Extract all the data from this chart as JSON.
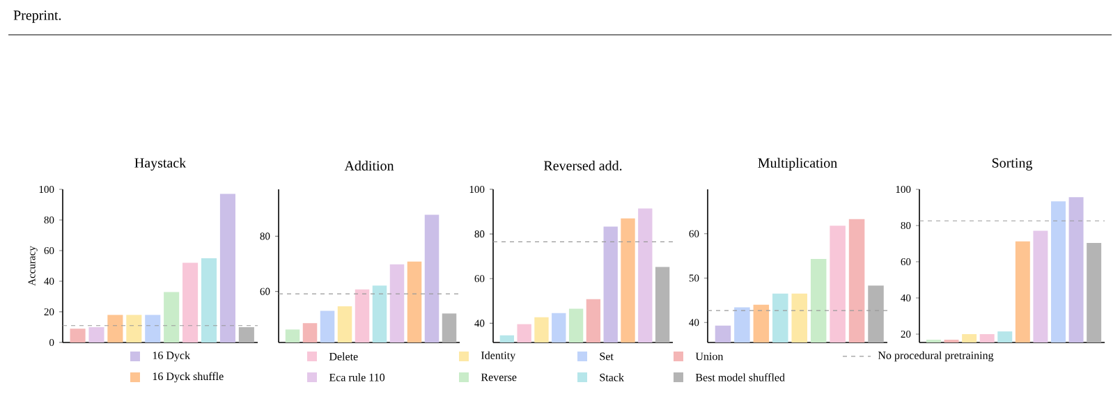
{
  "chart_data": [
    {
      "type": "bar",
      "title": "Haystack",
      "ylabel": "Accuracy",
      "annotations": [
        "Preprint."
      ],
      "categories": [
        null,
        null,
        null,
        null,
        null,
        null,
        null,
        null,
        null,
        null
      ],
      "ylim": [
        0,
        100
      ],
      "yticks": [
        0,
        20,
        40,
        60,
        80,
        100
      ],
      "ref_lines": [
        {
          "axis": "y",
          "value": 11,
          "color": "#999999",
          "line_style": "dashed"
        }
      ],
      "series": [
        {
          "color": "#cbbfe8",
          "values": [
            null,
            null,
            null,
            null,
            null,
            null,
            null,
            null,
            97,
            null
          ]
        },
        {
          "color": "#fec491",
          "values": [
            null,
            null,
            18,
            null,
            null,
            null,
            null,
            null,
            null,
            null
          ]
        },
        {
          "color": "#f8c6d8",
          "values": [
            null,
            null,
            null,
            null,
            null,
            null,
            52,
            null,
            null,
            null
          ]
        },
        {
          "color": "#e4c8ea",
          "values": [
            null,
            10,
            null,
            null,
            null,
            null,
            null,
            null,
            null,
            null
          ]
        },
        {
          "color": "#fde8a5",
          "values": [
            null,
            null,
            null,
            18,
            null,
            null,
            null,
            null,
            null,
            null
          ]
        },
        {
          "color": "#c9ecc9",
          "values": [
            null,
            null,
            null,
            null,
            null,
            33,
            null,
            null,
            null,
            null
          ]
        },
        {
          "color": "#bfd3fa",
          "values": [
            null,
            null,
            null,
            null,
            18,
            null,
            null,
            null,
            null,
            null
          ]
        },
        {
          "color": "#b6e6ea",
          "values": [
            null,
            null,
            null,
            null,
            null,
            null,
            null,
            55,
            null,
            null
          ]
        },
        {
          "color": "#f4b6b6",
          "values": [
            9,
            null,
            null,
            null,
            null,
            null,
            null,
            null,
            null,
            null
          ]
        },
        {
          "color": "#b4b4b4",
          "values": [
            null,
            null,
            null,
            null,
            null,
            null,
            null,
            null,
            null,
            10
          ]
        }
      ]
    },
    {
      "type": "bar",
      "title": "Addition",
      "categories": [
        null,
        null,
        null,
        null,
        null,
        null,
        null,
        null,
        null,
        null
      ],
      "ylim": [
        41.5,
        97
      ],
      "yticks": [
        60,
        80
      ],
      "ref_lines": [
        {
          "axis": "y",
          "value": 59.1,
          "color": "#999999",
          "line_style": "dashed"
        }
      ],
      "series": [
        {
          "color": "#cbbfe8",
          "values": [
            null,
            null,
            null,
            null,
            null,
            null,
            null,
            null,
            87.8,
            null
          ]
        },
        {
          "color": "#fec491",
          "values": [
            null,
            null,
            null,
            null,
            null,
            null,
            null,
            70.8,
            null,
            null
          ]
        },
        {
          "color": "#f8c6d8",
          "values": [
            null,
            null,
            null,
            null,
            60.7,
            null,
            null,
            null,
            null,
            null
          ]
        },
        {
          "color": "#e4c8ea",
          "values": [
            null,
            null,
            null,
            null,
            null,
            null,
            69.8,
            null,
            null,
            null
          ]
        },
        {
          "color": "#fde8a5",
          "values": [
            null,
            null,
            null,
            54.6,
            null,
            null,
            null,
            null,
            null,
            null
          ]
        },
        {
          "color": "#c9ecc9",
          "values": [
            46.2,
            null,
            null,
            null,
            null,
            null,
            null,
            null,
            null,
            null
          ]
        },
        {
          "color": "#bfd3fa",
          "values": [
            null,
            null,
            53,
            null,
            null,
            null,
            null,
            null,
            null,
            null
          ]
        },
        {
          "color": "#b6e6ea",
          "values": [
            null,
            null,
            null,
            null,
            null,
            62.1,
            null,
            null,
            null,
            null
          ]
        },
        {
          "color": "#f4b6b6",
          "values": [
            null,
            48.5,
            null,
            null,
            null,
            null,
            null,
            null,
            null,
            null
          ]
        },
        {
          "color": "#b4b4b4",
          "values": [
            null,
            null,
            null,
            null,
            null,
            null,
            null,
            null,
            null,
            52
          ]
        }
      ]
    },
    {
      "type": "bar",
      "title": "Reversed add.",
      "legend": "bottom",
      "categories": [
        null,
        null,
        null,
        null,
        null,
        null,
        null,
        null,
        null,
        null
      ],
      "ylim": [
        31.4,
        100
      ],
      "yticks": [
        40,
        60,
        80,
        100
      ],
      "ref_lines": [
        {
          "axis": "y",
          "value": 76.5,
          "label": "No procedural pretraining",
          "color": "#999999",
          "line_style": "dashed"
        }
      ],
      "series": [
        {
          "name": "16 Dyck",
          "color": "#cbbfe8",
          "values": [
            null,
            null,
            null,
            null,
            null,
            null,
            83.3,
            null,
            null,
            null
          ]
        },
        {
          "name": "16 Dyck shuffle",
          "color": "#fec491",
          "values": [
            null,
            null,
            null,
            null,
            null,
            null,
            null,
            87,
            null,
            null
          ]
        },
        {
          "name": "Delete",
          "color": "#f8c6d8",
          "values": [
            null,
            39.6,
            null,
            null,
            null,
            null,
            null,
            null,
            null,
            null
          ]
        },
        {
          "name": "Eca rule 110",
          "color": "#e4c8ea",
          "values": [
            null,
            null,
            null,
            null,
            null,
            null,
            null,
            null,
            91.4,
            null
          ]
        },
        {
          "name": "Identity",
          "color": "#fde8a5",
          "values": [
            null,
            null,
            42.7,
            null,
            null,
            null,
            null,
            null,
            null,
            null
          ]
        },
        {
          "name": "Reverse",
          "color": "#c9ecc9",
          "values": [
            null,
            null,
            null,
            null,
            46.5,
            null,
            null,
            null,
            null,
            null
          ]
        },
        {
          "name": "Set",
          "color": "#bfd3fa",
          "values": [
            null,
            null,
            null,
            44.6,
            null,
            null,
            null,
            null,
            null,
            null
          ]
        },
        {
          "name": "Stack",
          "color": "#b6e6ea",
          "values": [
            34.6,
            null,
            null,
            null,
            null,
            null,
            null,
            null,
            null,
            null
          ]
        },
        {
          "name": "Union",
          "color": "#f4b6b6",
          "values": [
            null,
            null,
            null,
            null,
            null,
            50.8,
            null,
            null,
            null,
            null
          ]
        },
        {
          "name": "Best model shuffled",
          "color": "#b4b4b4",
          "values": [
            null,
            null,
            null,
            null,
            null,
            null,
            null,
            null,
            null,
            65.2
          ]
        }
      ]
    },
    {
      "type": "bar",
      "title": "Multiplication",
      "categories": [
        null,
        null,
        null,
        null,
        null,
        null,
        null,
        null,
        null
      ],
      "ylim": [
        35.5,
        70
      ],
      "yticks": [
        40,
        50,
        60
      ],
      "ref_lines": [
        {
          "axis": "y",
          "value": 42.7,
          "color": "#999999",
          "line_style": "dashed"
        }
      ],
      "series": [
        {
          "color": "#cbbfe8",
          "values": [
            39.3,
            null,
            null,
            null,
            null,
            null,
            null,
            null,
            null
          ]
        },
        {
          "color": "#fec491",
          "values": [
            null,
            null,
            44,
            null,
            null,
            null,
            null,
            null,
            null
          ]
        },
        {
          "color": "#f8c6d8",
          "values": [
            null,
            null,
            null,
            null,
            null,
            null,
            61.8,
            null,
            null
          ]
        },
        {
          "color": "#fde8a5",
          "values": [
            null,
            null,
            null,
            null,
            46.5,
            null,
            null,
            null,
            null
          ]
        },
        {
          "color": "#c9ecc9",
          "values": [
            null,
            null,
            null,
            null,
            null,
            54.3,
            null,
            null,
            null
          ]
        },
        {
          "color": "#bfd3fa",
          "values": [
            null,
            43.4,
            null,
            null,
            null,
            null,
            null,
            null,
            null
          ]
        },
        {
          "color": "#b6e6ea",
          "values": [
            null,
            null,
            null,
            46.5,
            null,
            null,
            null,
            null,
            null
          ]
        },
        {
          "color": "#f4b6b6",
          "values": [
            null,
            null,
            null,
            null,
            null,
            null,
            null,
            63.3,
            null
          ]
        },
        {
          "color": "#b4b4b4",
          "values": [
            null,
            null,
            null,
            null,
            null,
            null,
            null,
            null,
            48.3
          ]
        }
      ]
    },
    {
      "type": "bar",
      "title": "Sorting",
      "categories": [
        null,
        null,
        null,
        null,
        null,
        null,
        null,
        null,
        null,
        null
      ],
      "ylim": [
        15.4,
        100
      ],
      "yticks": [
        20,
        40,
        60,
        80,
        100
      ],
      "ref_lines": [
        {
          "axis": "y",
          "value": 82.6,
          "color": "#999999",
          "line_style": "dashed"
        }
      ],
      "series": [
        {
          "color": "#cbbfe8",
          "values": [
            null,
            null,
            null,
            null,
            null,
            null,
            null,
            null,
            95.7,
            null
          ]
        },
        {
          "color": "#fec491",
          "values": [
            null,
            null,
            null,
            null,
            null,
            71.2,
            null,
            null,
            null,
            null
          ]
        },
        {
          "color": "#f8c6d8",
          "values": [
            null,
            null,
            null,
            20,
            null,
            null,
            null,
            null,
            null,
            null
          ]
        },
        {
          "color": "#e4c8ea",
          "values": [
            null,
            null,
            null,
            null,
            null,
            null,
            77.1,
            null,
            null,
            null
          ]
        },
        {
          "color": "#fde8a5",
          "values": [
            null,
            null,
            20,
            null,
            null,
            null,
            null,
            null,
            null,
            null
          ]
        },
        {
          "color": "#c9ecc9",
          "values": [
            16.9,
            null,
            null,
            null,
            null,
            null,
            null,
            null,
            null,
            null
          ]
        },
        {
          "color": "#bfd3fa",
          "values": [
            null,
            null,
            null,
            null,
            null,
            null,
            null,
            93.4,
            null,
            null
          ]
        },
        {
          "color": "#b6e6ea",
          "values": [
            null,
            null,
            null,
            null,
            21.5,
            null,
            null,
            null,
            null,
            null
          ]
        },
        {
          "color": "#f4b6b6",
          "values": [
            null,
            16.9,
            null,
            null,
            null,
            null,
            null,
            null,
            null,
            null
          ]
        },
        {
          "color": "#b4b4b4",
          "values": [
            null,
            null,
            null,
            null,
            null,
            null,
            null,
            null,
            null,
            70.4
          ]
        }
      ]
    }
  ]
}
